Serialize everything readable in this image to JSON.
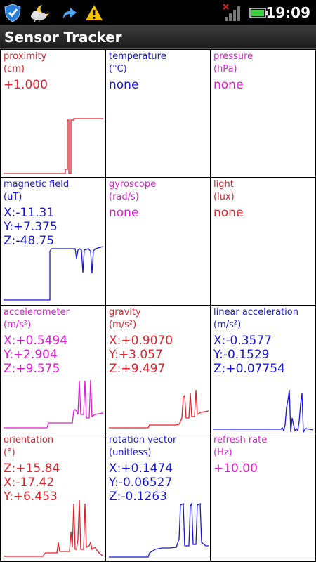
{
  "status_bar": {
    "time": "19:09",
    "icons": [
      "shield-check-icon",
      "weather-moon-cloud-icon",
      "usb-share-icon",
      "warning-icon",
      "no-signal-icon",
      "battery-icon"
    ]
  },
  "app": {
    "title": "Sensor Tracker"
  },
  "colors": {
    "red": "#e0202a",
    "blue": "#1616d6",
    "magenta": "#e01ad4"
  },
  "sensors": [
    {
      "name": "proximity",
      "unit": "(cm)",
      "color": "red",
      "values": [
        "+1.000"
      ]
    },
    {
      "name": "temperature",
      "unit": "(°C)",
      "color": "blue",
      "values": [
        "none"
      ]
    },
    {
      "name": "pressure",
      "unit": "(hPa)",
      "color": "magenta",
      "values": [
        "none"
      ]
    },
    {
      "name": "magnetic field",
      "unit": "(uT)",
      "color": "blue",
      "values": [
        "X:-11.31",
        "Y:+7.375",
        "Z:-48.75"
      ]
    },
    {
      "name": "gyroscope",
      "unit": "(rad/s)",
      "color": "magenta",
      "values": [
        "none"
      ]
    },
    {
      "name": "light",
      "unit": "(lux)",
      "color": "red",
      "values": [
        "none"
      ]
    },
    {
      "name": "accelerometer",
      "unit": "(m/s²)",
      "color": "magenta",
      "values": [
        "X:+0.5494",
        "Y:+2.904",
        "Z:+9.575"
      ]
    },
    {
      "name": "gravity",
      "unit": "(m/s²)",
      "color": "red",
      "values": [
        "X:+0.9070",
        "Y:+3.057",
        "Z:+9.497"
      ]
    },
    {
      "name": "linear acceleration",
      "unit": "(m/s²)",
      "color": "blue",
      "values": [
        "X:-0.3577",
        "Y:-0.1529",
        "Z:+0.07754"
      ]
    },
    {
      "name": "orientation",
      "unit": "(°)",
      "color": "red",
      "values": [
        "Z:+15.84",
        "X:-17.42",
        "Y:+6.453"
      ]
    },
    {
      "name": "rotation vector",
      "unit": "(unitless)",
      "color": "blue",
      "values": [
        "X:+0.1474",
        "Y:-0.06527",
        "Z:-0.1263"
      ]
    },
    {
      "name": "refresh rate",
      "unit": "(Hz)",
      "color": "magenta",
      "values": [
        "+10.00"
      ]
    }
  ]
}
